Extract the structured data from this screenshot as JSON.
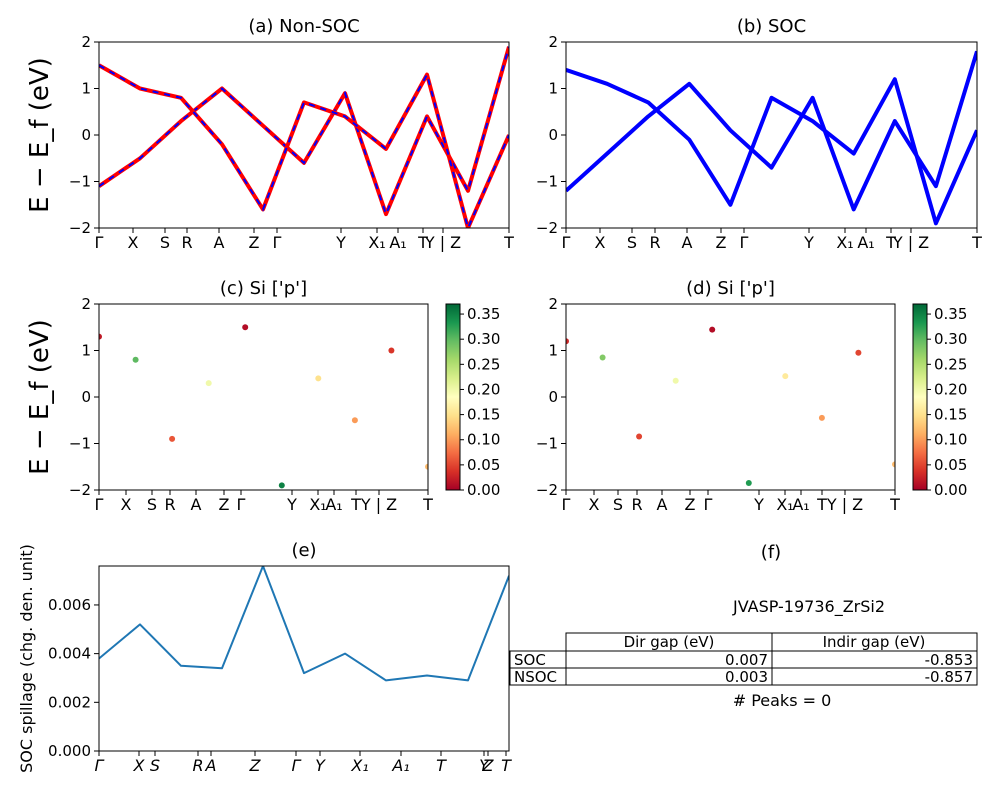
{
  "chart_data": [
    {
      "type": "line",
      "title": "(a) Non-SOC",
      "ylabel": "E − E_f (eV)",
      "ylim": [
        -2,
        2
      ],
      "yticks": [
        "−2",
        "−1",
        "0",
        "1",
        "2"
      ],
      "xticks": [
        "Γ",
        "X",
        "S",
        "R",
        "A",
        "Z",
        "Γ",
        "Y",
        "X₁",
        "A₁",
        "T",
        "Y | Z",
        "T"
      ],
      "series": [
        {
          "style": "red solid + blue dashed overlay",
          "color": "#ff0000",
          "overlay_color": "#0000ff",
          "x": [
            0.0,
            0.1,
            0.2,
            0.3,
            0.4,
            0.5,
            0.6,
            0.7,
            0.8,
            0.9,
            1.0
          ],
          "y": [
            -1.1,
            -0.5,
            0.3,
            1.0,
            0.2,
            -0.6,
            0.9,
            -1.7,
            0.4,
            -1.2,
            1.9
          ]
        },
        {
          "style": "red solid + blue dashed overlay",
          "color": "#ff0000",
          "overlay_color": "#0000ff",
          "x": [
            0.0,
            0.1,
            0.2,
            0.3,
            0.4,
            0.5,
            0.6,
            0.7,
            0.8,
            0.9,
            1.0
          ],
          "y": [
            1.5,
            1.0,
            0.8,
            -0.2,
            -1.6,
            0.7,
            0.4,
            -0.3,
            1.3,
            -2.0,
            0.0
          ]
        }
      ]
    },
    {
      "type": "line",
      "title": "(b) SOC",
      "ylim": [
        -2,
        2
      ],
      "yticks": [
        "−2",
        "−1",
        "0",
        "1",
        "2"
      ],
      "xticks": [
        "Γ",
        "X",
        "S",
        "R",
        "A",
        "Z",
        "Γ",
        "Y",
        "X₁",
        "A₁",
        "T",
        "Y | Z",
        "T"
      ],
      "series": [
        {
          "color": "#0000ff",
          "x": [
            0.0,
            0.1,
            0.2,
            0.3,
            0.4,
            0.5,
            0.6,
            0.7,
            0.8,
            0.9,
            1.0
          ],
          "y": [
            -1.2,
            -0.4,
            0.4,
            1.1,
            0.1,
            -0.7,
            0.8,
            -1.6,
            0.3,
            -1.1,
            1.8
          ]
        },
        {
          "color": "#0000ff",
          "x": [
            0.0,
            0.1,
            0.2,
            0.3,
            0.4,
            0.5,
            0.6,
            0.7,
            0.8,
            0.9,
            1.0
          ],
          "y": [
            1.4,
            1.1,
            0.7,
            -0.1,
            -1.5,
            0.8,
            0.3,
            -0.4,
            1.2,
            -1.9,
            0.1
          ]
        }
      ]
    },
    {
      "type": "scatter",
      "title": "(c)  Si ['p']",
      "ylabel": "E − E_f (eV)",
      "ylim": [
        -2,
        2
      ],
      "yticks": [
        "−2",
        "−1",
        "0",
        "1",
        "2"
      ],
      "xticks": [
        "Γ",
        "X",
        "S",
        "R",
        "A",
        "Z",
        "Γ",
        "Y",
        "X₁",
        "A₁",
        "T",
        "Y | Z",
        "T"
      ],
      "colorbar": {
        "min": 0.0,
        "max": 0.37,
        "ticks": [
          "0.00",
          "0.05",
          "0.10",
          "0.15",
          "0.20",
          "0.25",
          "0.30",
          "0.35"
        ],
        "colormap": "RdYlGn"
      },
      "points": {
        "x": [
          0.05,
          0.15,
          0.25,
          0.35,
          0.45,
          0.55,
          0.65,
          0.75,
          0.85,
          0.95
        ],
        "y": [
          1.3,
          0.8,
          -0.9,
          0.3,
          1.5,
          -1.9,
          0.4,
          -0.5,
          1.0,
          -1.5
        ],
        "c": [
          0.02,
          0.3,
          0.06,
          0.2,
          0.01,
          0.35,
          0.15,
          0.1,
          0.04,
          0.12
        ]
      }
    },
    {
      "type": "scatter",
      "title": "(d) Si ['p']",
      "ylim": [
        -2,
        2
      ],
      "yticks": [
        "−2",
        "−1",
        "0",
        "1",
        "2"
      ],
      "xticks": [
        "Γ",
        "X",
        "S",
        "R",
        "A",
        "Z",
        "Γ",
        "Y",
        "X₁",
        "A₁",
        "T",
        "Y | Z",
        "T"
      ],
      "colorbar": {
        "min": 0.0,
        "max": 0.37,
        "ticks": [
          "0.00",
          "0.05",
          "0.10",
          "0.15",
          "0.20",
          "0.25",
          "0.30",
          "0.35"
        ],
        "colormap": "RdYlGn"
      },
      "points": {
        "x": [
          0.05,
          0.15,
          0.25,
          0.35,
          0.45,
          0.55,
          0.65,
          0.75,
          0.85,
          0.95
        ],
        "y": [
          1.2,
          0.85,
          -0.85,
          0.35,
          1.45,
          -1.85,
          0.45,
          -0.45,
          0.95,
          -1.45
        ],
        "c": [
          0.03,
          0.28,
          0.05,
          0.2,
          0.01,
          0.33,
          0.16,
          0.1,
          0.05,
          0.12
        ]
      }
    },
    {
      "type": "line",
      "title": "(e)",
      "ylabel": "SOC spillage (chg. den. unit)",
      "ylim": [
        0,
        0.0076
      ],
      "yticks": [
        "0.000",
        "0.002",
        "0.004",
        "0.006"
      ],
      "xticks": [
        "Γ",
        "X",
        "S",
        "R",
        "A",
        "Z",
        "Γ",
        "Y",
        "X₁",
        "A₁",
        "T",
        "Y",
        "Z",
        "T"
      ],
      "series": [
        {
          "color": "#1f77b4",
          "x": [
            0.0,
            0.1,
            0.2,
            0.3,
            0.4,
            0.5,
            0.6,
            0.7,
            0.8,
            0.9,
            1.0
          ],
          "y": [
            0.0038,
            0.0052,
            0.0035,
            0.0034,
            0.0076,
            0.0032,
            0.004,
            0.0029,
            0.0031,
            0.0029,
            0.0072
          ]
        }
      ]
    }
  ],
  "panel_f": {
    "title": "(f)",
    "caption": "JVASP-19736_ZrSi2",
    "table": {
      "headers": [
        "Dir gap (eV)",
        "Indir gap (eV)"
      ],
      "rows": [
        {
          "label": "SOC",
          "dir": "0.007",
          "indir": "-0.853"
        },
        {
          "label": "NSOC",
          "dir": "0.003",
          "indir": "-0.857"
        }
      ]
    },
    "peaks": "# Peaks = 0"
  }
}
